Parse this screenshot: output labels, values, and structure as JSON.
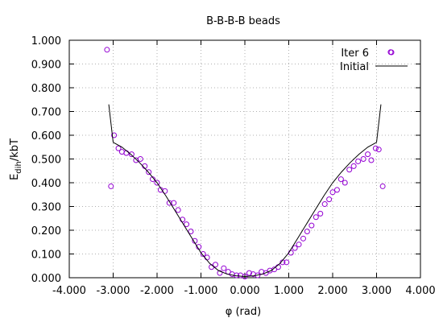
{
  "chart_data": {
    "type": "scatter",
    "title": "B-B-B-B beads",
    "xlabel": "φ (rad)",
    "ylabel": "E",
    "ylabel_subscript": "dih",
    "ylabel_suffix": "/kbT",
    "xlim": [
      -4.0,
      4.0
    ],
    "ylim": [
      0.0,
      1.0
    ],
    "x_ticks": [
      -4.0,
      -3.0,
      -2.0,
      -1.0,
      0.0,
      1.0,
      2.0,
      3.0,
      4.0
    ],
    "y_ticks": [
      0.0,
      0.1,
      0.2,
      0.3,
      0.4,
      0.5,
      0.6,
      0.7,
      0.8,
      0.9,
      1.0
    ],
    "x_tick_labels": [
      "-4.000",
      "-3.000",
      "-2.000",
      "-1.000",
      "0.000",
      "1.000",
      "2.000",
      "3.000",
      "4.000"
    ],
    "y_tick_labels": [
      "0.000",
      "0.100",
      "0.200",
      "0.300",
      "0.400",
      "0.500",
      "0.600",
      "0.700",
      "0.800",
      "0.900",
      "1.000"
    ],
    "grid": true,
    "legend_position": "top-right",
    "series": [
      {
        "name": "Iter 6",
        "style": "points",
        "marker": "open-circle",
        "color": "#9400d3",
        "x": [
          -3.14,
          -3.05,
          -2.98,
          -2.88,
          -2.8,
          -2.7,
          -2.58,
          -2.48,
          -2.38,
          -2.28,
          -2.19,
          -2.1,
          -2.0,
          -1.92,
          -1.82,
          -1.72,
          -1.62,
          -1.52,
          -1.42,
          -1.33,
          -1.23,
          -1.14,
          -1.05,
          -0.95,
          -0.86,
          -0.76,
          -0.67,
          -0.57,
          -0.48,
          -0.38,
          -0.29,
          -0.19,
          -0.1,
          0.0,
          0.1,
          0.19,
          0.29,
          0.38,
          0.48,
          0.57,
          0.67,
          0.76,
          0.86,
          0.95,
          1.05,
          1.14,
          1.23,
          1.33,
          1.42,
          1.52,
          1.62,
          1.72,
          1.82,
          1.92,
          2.0,
          2.1,
          2.19,
          2.28,
          2.38,
          2.48,
          2.58,
          2.7,
          2.8,
          2.88,
          2.98,
          3.05,
          3.14,
          3.32
        ],
        "y": [
          0.96,
          0.385,
          0.6,
          0.545,
          0.53,
          0.525,
          0.52,
          0.495,
          0.5,
          0.47,
          0.445,
          0.415,
          0.4,
          0.37,
          0.365,
          0.315,
          0.315,
          0.285,
          0.245,
          0.225,
          0.195,
          0.155,
          0.13,
          0.1,
          0.085,
          0.045,
          0.055,
          0.02,
          0.04,
          0.025,
          0.015,
          0.01,
          0.01,
          0.005,
          0.02,
          0.015,
          0.01,
          0.025,
          0.02,
          0.03,
          0.035,
          0.045,
          0.065,
          0.065,
          0.105,
          0.125,
          0.14,
          0.165,
          0.195,
          0.22,
          0.255,
          0.27,
          0.31,
          0.33,
          0.36,
          0.37,
          0.415,
          0.4,
          0.455,
          0.47,
          0.49,
          0.5,
          0.52,
          0.495,
          0.545,
          0.54,
          0.385,
          0.95
        ]
      },
      {
        "name": "Initial",
        "style": "line",
        "color": "#000000",
        "x": [
          -3.1,
          -3.0,
          -2.8,
          -2.6,
          -2.4,
          -2.2,
          -2.0,
          -1.8,
          -1.6,
          -1.4,
          -1.2,
          -1.0,
          -0.8,
          -0.6,
          -0.4,
          -0.2,
          0.0,
          0.2,
          0.4,
          0.6,
          0.8,
          1.0,
          1.2,
          1.4,
          1.6,
          1.8,
          2.0,
          2.2,
          2.4,
          2.6,
          2.8,
          3.0,
          3.1
        ],
        "y": [
          0.73,
          0.57,
          0.55,
          0.52,
          0.485,
          0.445,
          0.4,
          0.345,
          0.285,
          0.225,
          0.165,
          0.105,
          0.06,
          0.03,
          0.015,
          0.008,
          0.005,
          0.008,
          0.015,
          0.03,
          0.06,
          0.105,
          0.165,
          0.225,
          0.285,
          0.345,
          0.4,
          0.445,
          0.485,
          0.52,
          0.55,
          0.57,
          0.73
        ]
      }
    ]
  }
}
